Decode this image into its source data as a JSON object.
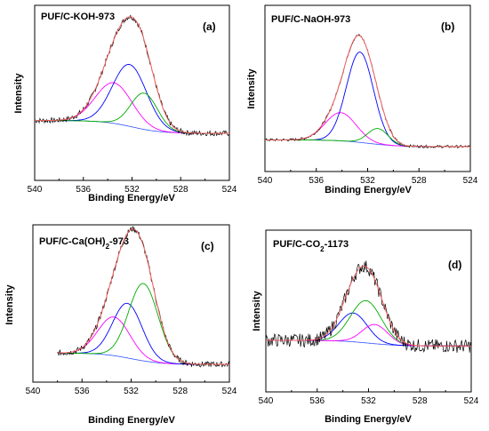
{
  "chart_data": [
    {
      "type": "line",
      "title": "PUF/C-KOH-973",
      "panel_label": "(a)",
      "xlabel": "Binding Energy/eV",
      "ylabel": "Intensity",
      "xlim": [
        540,
        524
      ],
      "xticks": [
        540,
        536,
        532,
        528,
        524
      ],
      "ylim": [
        0,
        1
      ],
      "background": {
        "left": 0.12,
        "right": 0.0
      },
      "series": [
        {
          "color": "#ff00ff",
          "center": 533.5,
          "amp": 0.38,
          "width": 1.5
        },
        {
          "color": "#0000ff",
          "center": 532.2,
          "amp": 0.58,
          "width": 1.4
        },
        {
          "color": "#00aa00",
          "center": 531.0,
          "amp": 0.34,
          "width": 1.1
        }
      ],
      "envelope_color": "#ff6060",
      "raw_color": "#000000",
      "noise": 0.025
    },
    {
      "type": "line",
      "title": "PUF/C-NaOH-973",
      "panel_label": "(b)",
      "xlabel": "Binding Energy/eV",
      "ylabel": "Intensity",
      "xlim": [
        540,
        524
      ],
      "xticks": [
        540,
        536,
        532,
        528,
        524
      ],
      "ylim": [
        0,
        1
      ],
      "background": {
        "left": 0.06,
        "right": 0.0
      },
      "series": [
        {
          "color": "#ff00ff",
          "center": 534.1,
          "amp": 0.25,
          "width": 1.2
        },
        {
          "color": "#0000ff",
          "center": 532.6,
          "amp": 0.8,
          "width": 1.05
        },
        {
          "color": "#00aa00",
          "center": 531.2,
          "amp": 0.14,
          "width": 0.8
        }
      ],
      "envelope_color": "#ff6060",
      "raw_color": "#000000",
      "noise": 0.012
    },
    {
      "type": "line",
      "title": "PUF/C-Ca(OH)2-973",
      "panel_label": "(c)",
      "xlabel": "Binding Energy/eV",
      "ylabel": "Intensity",
      "xlim": [
        540,
        524
      ],
      "xticks": [
        540,
        536,
        532,
        528,
        524
      ],
      "ylim": [
        0,
        1
      ],
      "x_data_range": [
        538,
        524
      ],
      "background": {
        "left": 0.1,
        "right": 0.0
      },
      "series": [
        {
          "color": "#ff00ff",
          "center": 533.4,
          "amp": 0.34,
          "width": 1.3
        },
        {
          "color": "#0000ff",
          "center": 532.3,
          "amp": 0.48,
          "width": 1.2
        },
        {
          "color": "#00aa00",
          "center": 531.0,
          "amp": 0.68,
          "width": 1.2
        }
      ],
      "envelope_color": "#ff6060",
      "raw_color": "#000000",
      "noise": 0.025
    },
    {
      "type": "line",
      "title": "PUF/C-CO2-1173",
      "panel_label": "(d)",
      "xlabel": "Binding Energy/eV",
      "ylabel": "Intensity",
      "xlim": [
        540,
        524
      ],
      "xticks": [
        540,
        536,
        532,
        528,
        524
      ],
      "ylim": [
        0,
        1
      ],
      "background": {
        "left": 0.14,
        "right": 0.08
      },
      "series": [
        {
          "color": "#0000ff",
          "center": 533.2,
          "amp": 0.3,
          "width": 1.1
        },
        {
          "color": "#00aa00",
          "center": 532.2,
          "amp": 0.44,
          "width": 1.2
        },
        {
          "color": "#ff00ff",
          "center": 531.5,
          "amp": 0.2,
          "width": 1.0
        }
      ],
      "envelope_color": "#ff6060",
      "raw_color": "#000000",
      "noise": 0.07
    }
  ]
}
